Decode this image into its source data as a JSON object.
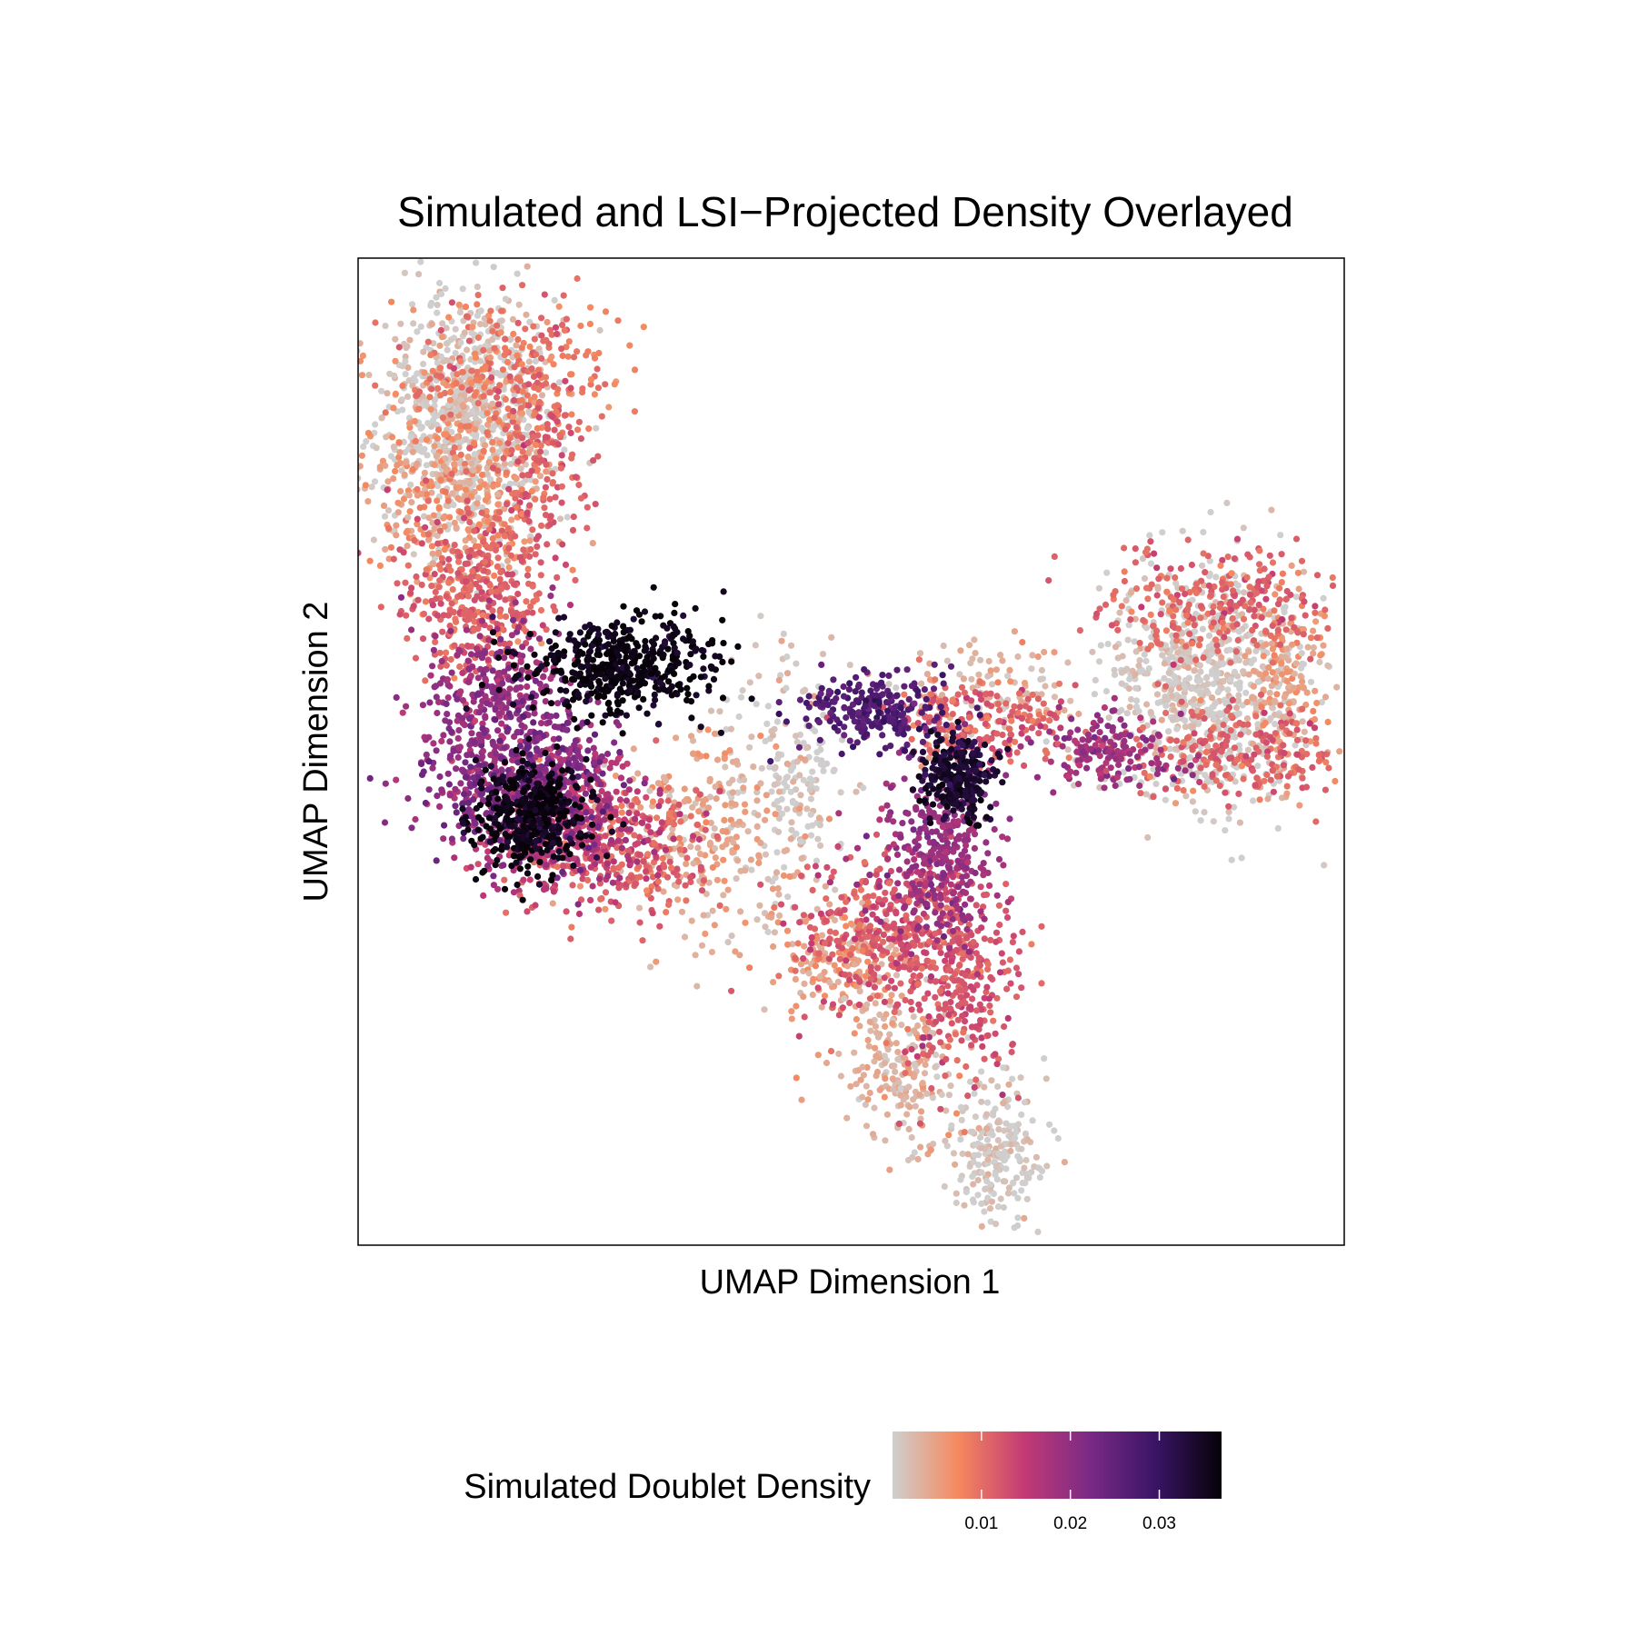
{
  "chart_data": {
    "type": "scatter",
    "title": "Simulated and LSI−Projected Density Overlayed",
    "xlabel": "UMAP Dimension 1",
    "ylabel": "UMAP Dimension 2",
    "xlim": [
      0,
      100
    ],
    "ylim": [
      0,
      100
    ],
    "axis_ticks": "none",
    "grid": false,
    "color_scale": {
      "name": "Simulated Doublet Density",
      "range": [
        0,
        0.037
      ],
      "ticks": [
        0.01,
        0.02,
        0.03
      ],
      "tick_labels": [
        "0.01",
        "0.02",
        "0.03"
      ],
      "colors": [
        "#cfcfcf",
        "#f5895e",
        "#c33a74",
        "#7a2a86",
        "#3a1466",
        "#060207"
      ],
      "legend_position": "bottom"
    },
    "regions": [
      {
        "x": 11,
        "y": 84,
        "sx": 4.5,
        "sy": 6.5,
        "n": 750,
        "density": 0.0005
      },
      {
        "x": 10,
        "y": 76,
        "sx": 4.5,
        "sy": 5.5,
        "n": 350,
        "density": 0.006
      },
      {
        "x": 15,
        "y": 88,
        "sx": 6,
        "sy": 4,
        "n": 280,
        "density": 0.009
      },
      {
        "x": 18.5,
        "y": 80,
        "sx": 2.2,
        "sy": 5.5,
        "n": 160,
        "density": 0.011
      },
      {
        "x": 12,
        "y": 66,
        "sx": 3.5,
        "sy": 4.5,
        "n": 380,
        "density": 0.011
      },
      {
        "x": 14,
        "y": 55,
        "sx": 4,
        "sy": 4.5,
        "n": 360,
        "density": 0.019
      },
      {
        "x": 17,
        "y": 47,
        "sx": 4.5,
        "sy": 4,
        "n": 420,
        "density": 0.022
      },
      {
        "x": 21,
        "y": 43,
        "sx": 5,
        "sy": 3.5,
        "n": 420,
        "density": 0.016
      },
      {
        "x": 26.5,
        "y": 58.5,
        "sx": 5,
        "sy": 2.5,
        "n": 480,
        "density": 0.036
      },
      {
        "x": 17.5,
        "y": 43.5,
        "sx": 2.8,
        "sy": 2.8,
        "n": 420,
        "density": 0.036
      },
      {
        "x": 26,
        "y": 40,
        "sx": 5,
        "sy": 3.5,
        "n": 300,
        "density": 0.011
      },
      {
        "x": 36,
        "y": 42,
        "sx": 4.5,
        "sy": 5,
        "n": 260,
        "density": 0.004
      },
      {
        "x": 44,
        "y": 48,
        "sx": 3,
        "sy": 7,
        "n": 190,
        "density": 0.0005
      },
      {
        "x": 52,
        "y": 54,
        "sx": 4,
        "sy": 1.8,
        "n": 230,
        "density": 0.027
      },
      {
        "x": 63,
        "y": 53,
        "sx": 5,
        "sy": 2,
        "n": 200,
        "density": 0.011
      },
      {
        "x": 63,
        "y": 56,
        "sx": 5,
        "sy": 2.5,
        "n": 120,
        "density": 0.003
      },
      {
        "x": 86,
        "y": 57,
        "sx": 5,
        "sy": 6,
        "n": 750,
        "density": 0.0005
      },
      {
        "x": 87,
        "y": 65,
        "sx": 6,
        "sy": 2.5,
        "n": 260,
        "density": 0.011
      },
      {
        "x": 90,
        "y": 50,
        "sx": 6,
        "sy": 2.5,
        "n": 230,
        "density": 0.011
      },
      {
        "x": 94,
        "y": 57,
        "sx": 2,
        "sy": 5,
        "n": 150,
        "density": 0.005
      },
      {
        "x": 76,
        "y": 50,
        "sx": 3.5,
        "sy": 1.8,
        "n": 160,
        "density": 0.019
      },
      {
        "x": 61,
        "y": 47.5,
        "sx": 1.8,
        "sy": 2,
        "n": 260,
        "density": 0.034
      },
      {
        "x": 59,
        "y": 40,
        "sx": 2.8,
        "sy": 4.5,
        "n": 330,
        "density": 0.019
      },
      {
        "x": 54,
        "y": 32,
        "sx": 5,
        "sy": 4,
        "n": 400,
        "density": 0.012
      },
      {
        "x": 49,
        "y": 29,
        "sx": 3.5,
        "sy": 3,
        "n": 180,
        "density": 0.005
      },
      {
        "x": 61,
        "y": 26,
        "sx": 3,
        "sy": 5,
        "n": 260,
        "density": 0.012
      },
      {
        "x": 55,
        "y": 18,
        "sx": 3,
        "sy": 3.5,
        "n": 200,
        "density": 0.003
      },
      {
        "x": 65,
        "y": 9,
        "sx": 2.5,
        "sy": 3.5,
        "n": 230,
        "density": 0.0005
      }
    ]
  }
}
